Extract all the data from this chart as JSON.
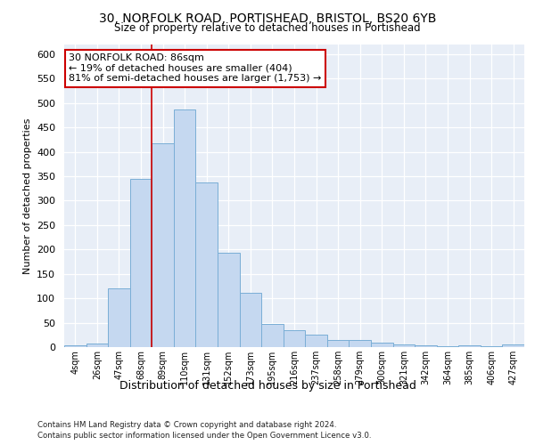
{
  "title1": "30, NORFOLK ROAD, PORTISHEAD, BRISTOL, BS20 6YB",
  "title2": "Size of property relative to detached houses in Portishead",
  "xlabel": "Distribution of detached houses by size in Portishead",
  "ylabel": "Number of detached properties",
  "categories": [
    "4sqm",
    "26sqm",
    "47sqm",
    "68sqm",
    "89sqm",
    "110sqm",
    "131sqm",
    "152sqm",
    "173sqm",
    "195sqm",
    "216sqm",
    "237sqm",
    "258sqm",
    "279sqm",
    "300sqm",
    "321sqm",
    "342sqm",
    "364sqm",
    "385sqm",
    "406sqm",
    "427sqm"
  ],
  "values": [
    4,
    7,
    120,
    345,
    418,
    487,
    337,
    193,
    111,
    48,
    35,
    25,
    15,
    14,
    10,
    6,
    3,
    2,
    3,
    2,
    5
  ],
  "bar_color": "#c5d8f0",
  "bar_edge_color": "#7aaed6",
  "vline_x_index": 4,
  "vline_color": "#cc0000",
  "annotation_text": "30 NORFOLK ROAD: 86sqm\n← 19% of detached houses are smaller (404)\n81% of semi-detached houses are larger (1,753) →",
  "annotation_box_color": "#ffffff",
  "annotation_box_edge": "#cc0000",
  "ylim": [
    0,
    620
  ],
  "yticks": [
    0,
    50,
    100,
    150,
    200,
    250,
    300,
    350,
    400,
    450,
    500,
    550,
    600
  ],
  "footer1": "Contains HM Land Registry data © Crown copyright and database right 2024.",
  "footer2": "Contains public sector information licensed under the Open Government Licence v3.0.",
  "bg_color": "#ffffff",
  "plot_bg_color": "#e8eef7"
}
